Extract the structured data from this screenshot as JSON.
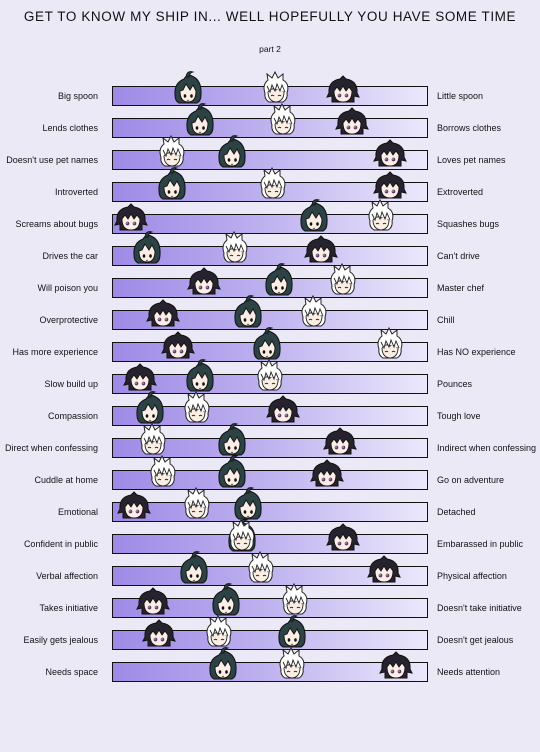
{
  "title": "GET TO KNOW MY SHIP IN... WELL HOPEFULLY YOU HAVE SOME TIME",
  "subtitle": "part 2",
  "characters": {
    "dark_teal_hair": {
      "icon": "dark-teal-hair-head-icon",
      "color": "#2c4245"
    },
    "white_hair": {
      "icon": "white-hair-head-icon",
      "color": "#ffffff"
    },
    "dark_purple_hair": {
      "icon": "dark-purple-hair-head-icon",
      "color": "#27232e"
    }
  },
  "scales": [
    {
      "left": "Big spoon",
      "right": "Little spoon",
      "teal": 0.24,
      "white": 0.52,
      "purple": 0.73
    },
    {
      "left": "Lends clothes",
      "right": "Borrows clothes",
      "teal": 0.28,
      "white": 0.54,
      "purple": 0.76
    },
    {
      "left": "Doesn't use pet names",
      "right": "Loves pet names",
      "teal": 0.38,
      "white": 0.19,
      "purple": 0.88
    },
    {
      "left": "Introverted",
      "right": "Extroverted",
      "teal": 0.19,
      "white": 0.51,
      "purple": 0.88
    },
    {
      "left": "Screams about bugs",
      "right": "Squashes bugs",
      "teal": 0.64,
      "white": 0.85,
      "purple": 0.06
    },
    {
      "left": "Drives the car",
      "right": "Can't drive",
      "teal": 0.11,
      "white": 0.39,
      "purple": 0.66
    },
    {
      "left": "Will poison you",
      "right": "Master chef",
      "teal": 0.53,
      "white": 0.73,
      "purple": 0.29
    },
    {
      "left": "Overprotective",
      "right": "Chill",
      "teal": 0.43,
      "white": 0.64,
      "purple": 0.16
    },
    {
      "left": "Has more experience",
      "right": "Has NO experience",
      "teal": 0.49,
      "white": 0.88,
      "purple": 0.21
    },
    {
      "left": "Slow build up",
      "right": "Pounces",
      "teal": 0.28,
      "white": 0.5,
      "purple": 0.09
    },
    {
      "left": "Compassion",
      "right": "Tough love",
      "teal": 0.12,
      "white": 0.27,
      "purple": 0.54
    },
    {
      "left": "Direct when confessing",
      "right": "Indirect when confessing",
      "teal": 0.38,
      "white": 0.13,
      "purple": 0.72
    },
    {
      "left": "Cuddle at home",
      "right": "Go on  adventure",
      "teal": 0.38,
      "white": 0.16,
      "purple": 0.68
    },
    {
      "left": "Emotional",
      "right": "Detached",
      "teal": 0.43,
      "white": 0.27,
      "purple": 0.07
    },
    {
      "left": "Confident in public",
      "right": "Embarassed in public",
      "teal": 0.41,
      "white": 0.41,
      "purple": 0.73
    },
    {
      "left": "Verbal affection",
      "right": "Physical affection",
      "teal": 0.26,
      "white": 0.47,
      "purple": 0.86
    },
    {
      "left": "Takes initiative",
      "right": "Doesn't take initiative",
      "teal": 0.36,
      "white": 0.58,
      "purple": 0.13
    },
    {
      "left": "Easily gets jealous",
      "right": "Doesn't get jealous",
      "teal": 0.57,
      "white": 0.34,
      "purple": 0.15
    },
    {
      "left": "Needs space",
      "right": "Needs attention",
      "teal": 0.35,
      "white": 0.57,
      "purple": 0.9
    }
  ]
}
